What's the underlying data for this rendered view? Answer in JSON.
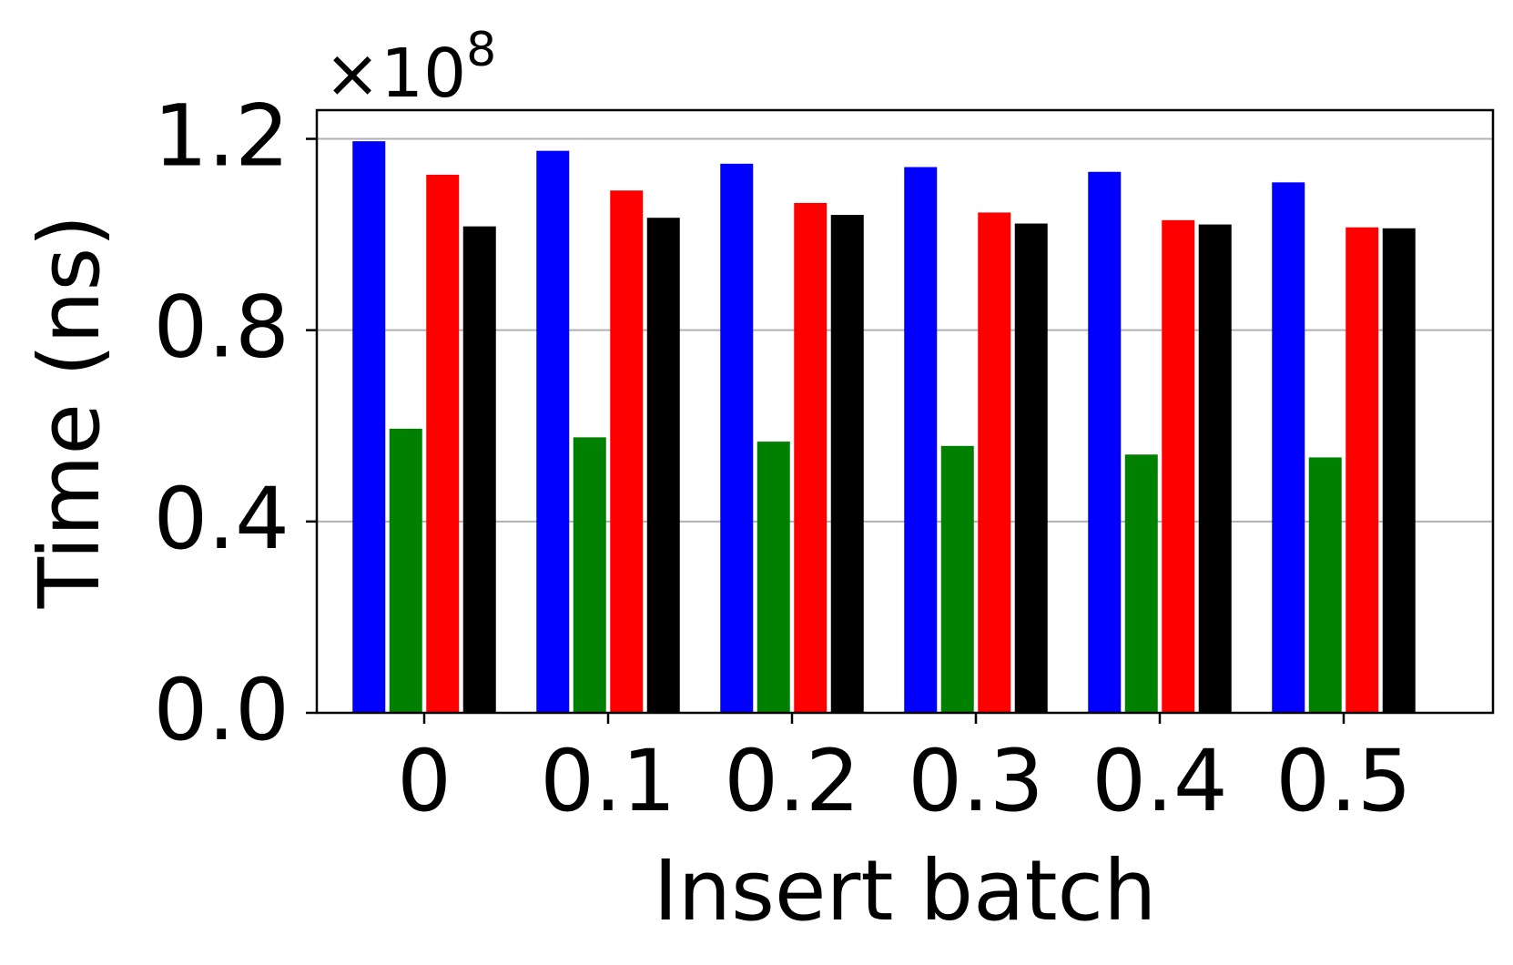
{
  "chart_data": {
    "type": "bar",
    "title": "",
    "xlabel": "Insert batch",
    "ylabel": "Time (ns)",
    "y_multiplier": "×10",
    "y_multiplier_exponent": "8",
    "categories": [
      "0",
      "0.1",
      "0.2",
      "0.3",
      "0.4",
      "0.5"
    ],
    "ylim": [
      0,
      1.26
    ],
    "yticks": [
      0.0,
      0.4,
      0.8,
      1.2
    ],
    "ytick_labels": [
      "0.0",
      "0.4",
      "0.8",
      "1.2"
    ],
    "grid": "horizontal",
    "legend": "none",
    "series": [
      {
        "color": "#0000ff",
        "values": [
          1.195,
          1.175,
          1.148,
          1.141,
          1.131,
          1.109
        ]
      },
      {
        "color": "#008000",
        "values": [
          0.594,
          0.576,
          0.567,
          0.558,
          0.54,
          0.534
        ]
      },
      {
        "color": "#ff0000",
        "values": [
          1.125,
          1.092,
          1.066,
          1.046,
          1.03,
          1.015
        ]
      },
      {
        "color": "#000000",
        "values": [
          1.017,
          1.035,
          1.041,
          1.023,
          1.021,
          1.013
        ]
      }
    ]
  }
}
